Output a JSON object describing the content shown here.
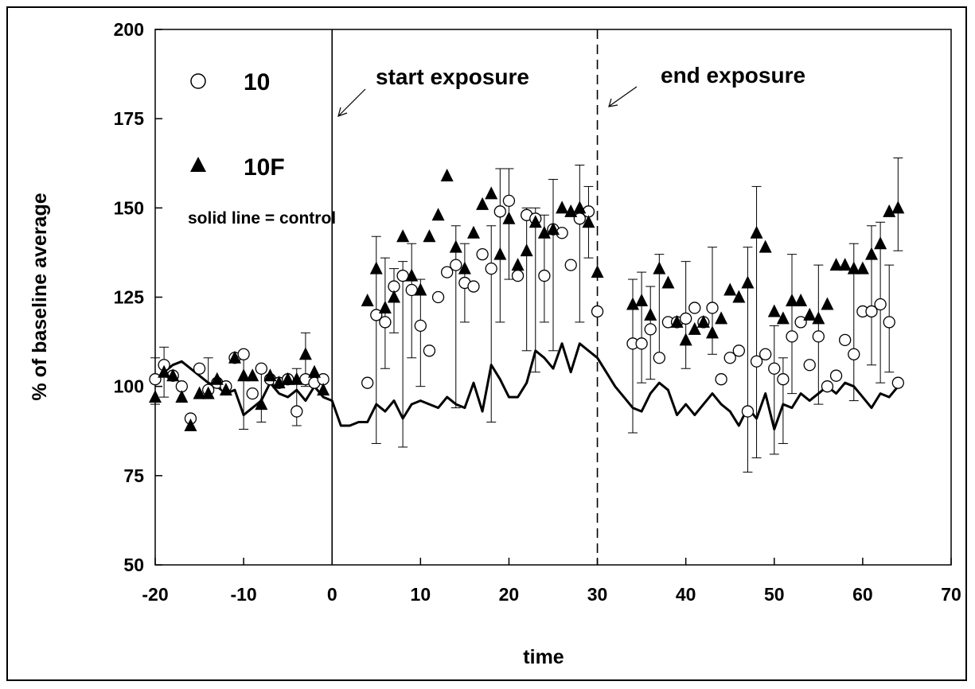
{
  "chart_data": {
    "type": "scatter",
    "xlabel": "time",
    "ylabel": "% of baseline average",
    "xlim": [
      -20,
      70
    ],
    "ylim": [
      50,
      200
    ],
    "xticks": [
      -20,
      -10,
      0,
      10,
      20,
      30,
      40,
      50,
      60,
      70
    ],
    "yticks": [
      50,
      75,
      100,
      125,
      150,
      175,
      200
    ],
    "legend": {
      "position": "top-left",
      "entries": [
        {
          "name": "10",
          "marker": "circle-open"
        },
        {
          "name": "10F",
          "marker": "triangle-filled"
        }
      ],
      "note": "solid line = control"
    },
    "annotations": [
      {
        "text": "start exposure",
        "x": 0,
        "line": "solid"
      },
      {
        "text": "end exposure",
        "x": 30,
        "line": "dashed"
      }
    ],
    "series": [
      {
        "name": "10",
        "marker": "circle-open",
        "points": [
          [
            -20,
            102
          ],
          [
            -19,
            106
          ],
          [
            -18,
            103
          ],
          [
            -17,
            100
          ],
          [
            -16,
            91
          ],
          [
            -15,
            105
          ],
          [
            -14,
            99
          ],
          [
            -13,
            101
          ],
          [
            -12,
            100
          ],
          [
            -11,
            108
          ],
          [
            -10,
            109
          ],
          [
            -9,
            98
          ],
          [
            -8,
            105
          ],
          [
            -7,
            102
          ],
          [
            -6,
            101
          ],
          [
            -5,
            102
          ],
          [
            -4,
            93
          ],
          [
            -3,
            102
          ],
          [
            -2,
            101
          ],
          [
            -1,
            102
          ],
          [
            4,
            101
          ],
          [
            5,
            120
          ],
          [
            6,
            118
          ],
          [
            7,
            128
          ],
          [
            8,
            131
          ],
          [
            9,
            127
          ],
          [
            10,
            117
          ],
          [
            11,
            110
          ],
          [
            12,
            125
          ],
          [
            13,
            132
          ],
          [
            14,
            134
          ],
          [
            15,
            129
          ],
          [
            16,
            128
          ],
          [
            17,
            137
          ],
          [
            18,
            133
          ],
          [
            19,
            149
          ],
          [
            20,
            152
          ],
          [
            21,
            131
          ],
          [
            22,
            148
          ],
          [
            23,
            147
          ],
          [
            24,
            131
          ],
          [
            25,
            144
          ],
          [
            26,
            143
          ],
          [
            27,
            134
          ],
          [
            28,
            147
          ],
          [
            29,
            149
          ],
          [
            30,
            121
          ],
          [
            34,
            112
          ],
          [
            35,
            112
          ],
          [
            36,
            116
          ],
          [
            37,
            108
          ],
          [
            38,
            118
          ],
          [
            39,
            118
          ],
          [
            40,
            119
          ],
          [
            41,
            122
          ],
          [
            42,
            118
          ],
          [
            43,
            122
          ],
          [
            44,
            102
          ],
          [
            45,
            108
          ],
          [
            46,
            110
          ],
          [
            47,
            93
          ],
          [
            48,
            107
          ],
          [
            49,
            109
          ],
          [
            50,
            105
          ],
          [
            51,
            102
          ],
          [
            52,
            114
          ],
          [
            53,
            118
          ],
          [
            54,
            106
          ],
          [
            55,
            114
          ],
          [
            56,
            100
          ],
          [
            57,
            103
          ],
          [
            58,
            113
          ],
          [
            59,
            109
          ],
          [
            60,
            121
          ],
          [
            61,
            121
          ],
          [
            62,
            123
          ],
          [
            63,
            118
          ],
          [
            64,
            101
          ]
        ]
      },
      {
        "name": "10F",
        "marker": "triangle-filled",
        "points": [
          [
            -20,
            97
          ],
          [
            -19,
            104
          ],
          [
            -18,
            103
          ],
          [
            -17,
            97
          ],
          [
            -16,
            89
          ],
          [
            -15,
            98
          ],
          [
            -14,
            98
          ],
          [
            -13,
            102
          ],
          [
            -12,
            99
          ],
          [
            -11,
            108
          ],
          [
            -10,
            103
          ],
          [
            -9,
            103
          ],
          [
            -8,
            95
          ],
          [
            -7,
            103
          ],
          [
            -6,
            101
          ],
          [
            -5,
            102
          ],
          [
            -4,
            102
          ],
          [
            -3,
            109
          ],
          [
            -2,
            104
          ],
          [
            -1,
            99
          ],
          [
            4,
            124
          ],
          [
            5,
            133
          ],
          [
            6,
            122
          ],
          [
            7,
            125
          ],
          [
            8,
            142
          ],
          [
            9,
            131
          ],
          [
            10,
            127
          ],
          [
            11,
            142
          ],
          [
            12,
            148
          ],
          [
            13,
            159
          ],
          [
            14,
            139
          ],
          [
            15,
            133
          ],
          [
            16,
            143
          ],
          [
            17,
            151
          ],
          [
            18,
            154
          ],
          [
            19,
            137
          ],
          [
            20,
            147
          ],
          [
            21,
            134
          ],
          [
            22,
            138
          ],
          [
            23,
            146
          ],
          [
            24,
            143
          ],
          [
            25,
            144
          ],
          [
            26,
            150
          ],
          [
            27,
            149
          ],
          [
            28,
            150
          ],
          [
            29,
            146
          ],
          [
            30,
            132
          ],
          [
            34,
            123
          ],
          [
            35,
            124
          ],
          [
            36,
            120
          ],
          [
            37,
            133
          ],
          [
            38,
            129
          ],
          [
            39,
            118
          ],
          [
            40,
            113
          ],
          [
            41,
            116
          ],
          [
            42,
            118
          ],
          [
            43,
            115
          ],
          [
            44,
            119
          ],
          [
            45,
            127
          ],
          [
            46,
            125
          ],
          [
            47,
            129
          ],
          [
            48,
            143
          ],
          [
            49,
            139
          ],
          [
            50,
            121
          ],
          [
            51,
            119
          ],
          [
            52,
            124
          ],
          [
            53,
            124
          ],
          [
            54,
            120
          ],
          [
            55,
            119
          ],
          [
            56,
            123
          ],
          [
            57,
            134
          ],
          [
            58,
            134
          ],
          [
            59,
            133
          ],
          [
            60,
            133
          ],
          [
            61,
            137
          ],
          [
            62,
            140
          ],
          [
            63,
            149
          ],
          [
            64,
            150
          ]
        ]
      },
      {
        "name": "control",
        "style": "solid-line",
        "points": [
          [
            -20,
            101
          ],
          [
            -19,
            104
          ],
          [
            -18,
            106
          ],
          [
            -17,
            107
          ],
          [
            -16,
            105
          ],
          [
            -15,
            103
          ],
          [
            -14,
            101
          ],
          [
            -13,
            100
          ],
          [
            -12,
            98
          ],
          [
            -11,
            99
          ],
          [
            -10,
            92
          ],
          [
            -9,
            94
          ],
          [
            -8,
            96
          ],
          [
            -7,
            101
          ],
          [
            -6,
            98
          ],
          [
            -5,
            97
          ],
          [
            -4,
            99
          ],
          [
            -3,
            96
          ],
          [
            -2,
            100
          ],
          [
            -1,
            97
          ],
          [
            0,
            96
          ],
          [
            1,
            89
          ],
          [
            2,
            89
          ],
          [
            3,
            90
          ],
          [
            4,
            90
          ],
          [
            5,
            95
          ],
          [
            6,
            93
          ],
          [
            7,
            96
          ],
          [
            8,
            91
          ],
          [
            9,
            95
          ],
          [
            10,
            96
          ],
          [
            11,
            95
          ],
          [
            12,
            94
          ],
          [
            13,
            97
          ],
          [
            14,
            95
          ],
          [
            15,
            94
          ],
          [
            16,
            101
          ],
          [
            17,
            93
          ],
          [
            18,
            106
          ],
          [
            19,
            102
          ],
          [
            20,
            97
          ],
          [
            21,
            97
          ],
          [
            22,
            101
          ],
          [
            23,
            110
          ],
          [
            24,
            108
          ],
          [
            25,
            105
          ],
          [
            26,
            112
          ],
          [
            27,
            104
          ],
          [
            28,
            112
          ],
          [
            29,
            110
          ],
          [
            30,
            108
          ],
          [
            31,
            104
          ],
          [
            32,
            100
          ],
          [
            33,
            97
          ],
          [
            34,
            94
          ],
          [
            35,
            93
          ],
          [
            36,
            98
          ],
          [
            37,
            101
          ],
          [
            38,
            99
          ],
          [
            39,
            92
          ],
          [
            40,
            95
          ],
          [
            41,
            92
          ],
          [
            42,
            95
          ],
          [
            43,
            98
          ],
          [
            44,
            95
          ],
          [
            45,
            93
          ],
          [
            46,
            89
          ],
          [
            47,
            94
          ],
          [
            48,
            91
          ],
          [
            49,
            98
          ],
          [
            50,
            88
          ],
          [
            51,
            95
          ],
          [
            52,
            94
          ],
          [
            53,
            98
          ],
          [
            54,
            96
          ],
          [
            55,
            98
          ],
          [
            56,
            100
          ],
          [
            57,
            98
          ],
          [
            58,
            101
          ],
          [
            59,
            100
          ],
          [
            60,
            97
          ],
          [
            61,
            94
          ],
          [
            62,
            98
          ],
          [
            63,
            97
          ],
          [
            64,
            100
          ]
        ]
      }
    ],
    "errorbars": [
      {
        "x": -20,
        "hi": 108,
        "lo": 95
      },
      {
        "x": -19,
        "hi": 111,
        "lo": 97
      },
      {
        "x": -14,
        "hi": 108,
        "lo": 97
      },
      {
        "x": -10,
        "hi": 110,
        "lo": 88
      },
      {
        "x": -8,
        "hi": 104,
        "lo": 90
      },
      {
        "x": -4,
        "hi": 105,
        "lo": 89
      },
      {
        "x": -3,
        "hi": 115,
        "lo": 100
      },
      {
        "x": 5,
        "hi": 142,
        "lo": 84
      },
      {
        "x": 6,
        "hi": 136,
        "lo": 105
      },
      {
        "x": 7,
        "hi": 133,
        "lo": 115
      },
      {
        "x": 8,
        "hi": 135,
        "lo": 83
      },
      {
        "x": 9,
        "hi": 140,
        "lo": 108
      },
      {
        "x": 10,
        "hi": 130,
        "lo": 100
      },
      {
        "x": 14,
        "hi": 145,
        "lo": 94
      },
      {
        "x": 15,
        "hi": 140,
        "lo": 118
      },
      {
        "x": 18,
        "hi": 145,
        "lo": 90
      },
      {
        "x": 19,
        "hi": 161,
        "lo": 118
      },
      {
        "x": 20,
        "hi": 161,
        "lo": 130
      },
      {
        "x": 22,
        "hi": 150,
        "lo": 110
      },
      {
        "x": 23,
        "hi": 150,
        "lo": 104
      },
      {
        "x": 24,
        "hi": 148,
        "lo": 118
      },
      {
        "x": 25,
        "hi": 158,
        "lo": 110
      },
      {
        "x": 28,
        "hi": 162,
        "lo": 118
      },
      {
        "x": 29,
        "hi": 156,
        "lo": 136
      },
      {
        "x": 34,
        "hi": 130,
        "lo": 87
      },
      {
        "x": 35,
        "hi": 132,
        "lo": 101
      },
      {
        "x": 36,
        "hi": 128,
        "lo": 102
      },
      {
        "x": 37,
        "hi": 137,
        "lo": 108
      },
      {
        "x": 40,
        "hi": 135,
        "lo": 105
      },
      {
        "x": 43,
        "hi": 139,
        "lo": 109
      },
      {
        "x": 47,
        "hi": 139,
        "lo": 76
      },
      {
        "x": 48,
        "hi": 156,
        "lo": 80
      },
      {
        "x": 50,
        "hi": 117,
        "lo": 81
      },
      {
        "x": 51,
        "hi": 108,
        "lo": 84
      },
      {
        "x": 52,
        "hi": 137,
        "lo": 98
      },
      {
        "x": 55,
        "hi": 134,
        "lo": 95
      },
      {
        "x": 59,
        "hi": 140,
        "lo": 96
      },
      {
        "x": 61,
        "hi": 145,
        "lo": 106
      },
      {
        "x": 62,
        "hi": 146,
        "lo": 101
      },
      {
        "x": 63,
        "hi": 134,
        "lo": 104
      },
      {
        "x": 64,
        "hi": 164,
        "lo": 138
      }
    ]
  }
}
